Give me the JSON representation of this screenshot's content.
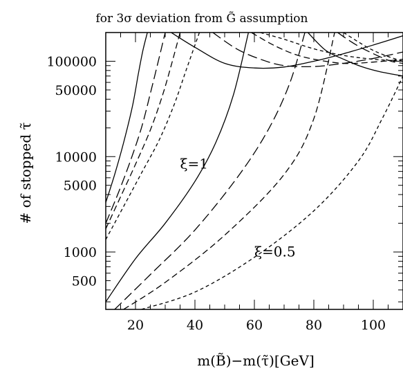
{
  "chart_data": {
    "type": "line",
    "title": "for 3σ deviation from G̃ assumption",
    "xlabel": "m(B̃)−m(τ̃)[GeV]",
    "ylabel": "# of stopped τ̃",
    "xlim": [
      10,
      110
    ],
    "ylim": [
      250,
      200000
    ],
    "yscale": "log",
    "x_ticks": [
      20,
      40,
      60,
      80,
      100
    ],
    "y_ticks": [
      500,
      1000,
      5000,
      10000,
      50000,
      100000
    ],
    "annotations": [
      {
        "text": "ξ=1",
        "x": 35,
        "y": 7500
      },
      {
        "text": "ξ=0.5",
        "x": 60,
        "y": 900
      }
    ],
    "series": [
      {
        "style": "solid",
        "group": "ξ=1",
        "x": [
          10,
          13,
          16,
          19,
          21,
          22.5,
          24
        ],
        "y": [
          3300,
          6500,
          14000,
          34000,
          75000,
          130000,
          200000
        ]
      },
      {
        "style": "long-dash",
        "group": "ξ=1",
        "x": [
          10,
          14,
          18,
          22,
          25,
          27.5,
          30
        ],
        "y": [
          2000,
          4000,
          8500,
          20000,
          46000,
          95000,
          200000
        ]
      },
      {
        "style": "medium-dash",
        "group": "ξ=1",
        "x": [
          10,
          15,
          20,
          25,
          29,
          32,
          35
        ],
        "y": [
          1750,
          3800,
          8300,
          19000,
          43000,
          90000,
          200000
        ]
      },
      {
        "style": "short-dash",
        "group": "ξ=1",
        "x": [
          10,
          16,
          22,
          28,
          33,
          37,
          41.5
        ],
        "y": [
          1350,
          3000,
          6700,
          15000,
          35000,
          80000,
          200000
        ]
      },
      {
        "style": "solid",
        "group": "ξ=0.5",
        "x": [
          10,
          20,
          30,
          40,
          47,
          53,
          58
        ],
        "y": [
          300,
          850,
          2000,
          5500,
          14000,
          45000,
          200000
        ]
      },
      {
        "style": "long-dash",
        "group": "ξ=0.5",
        "x": [
          13,
          25,
          40,
          55,
          65,
          72,
          77
        ],
        "y": [
          250,
          580,
          1700,
          6500,
          20000,
          60000,
          200000
        ]
      },
      {
        "style": "medium-dash",
        "group": "ξ=0.5",
        "x": [
          16,
          30,
          50,
          70,
          80,
          87
        ],
        "y": [
          250,
          480,
          1500,
          6500,
          25000,
          200000
        ]
      },
      {
        "style": "short-dash",
        "group": "ξ=0.5",
        "x": [
          22,
          40,
          60,
          80,
          95,
          103,
          110
        ],
        "y": [
          250,
          380,
          880,
          2700,
          9000,
          25000,
          70000
        ]
      },
      {
        "style": "solid",
        "group": "upper",
        "x": [
          32,
          40,
          50,
          60,
          70,
          80,
          90,
          100,
          110
        ],
        "y": [
          200000,
          140000,
          95000,
          85000,
          87000,
          100000,
          120000,
          148000,
          185000
        ]
      },
      {
        "style": "long-dash",
        "group": "upper",
        "x": [
          46,
          54,
          62,
          70,
          80,
          90,
          100,
          110
        ],
        "y": [
          200000,
          135000,
          105000,
          90000,
          88000,
          95000,
          107000,
          125000
        ]
      },
      {
        "style": "medium-dash",
        "group": "upper",
        "x": [
          59,
          66,
          73,
          80,
          90,
          100,
          110
        ],
        "y": [
          200000,
          150000,
          120000,
          105000,
          95000,
          98000,
          105000
        ]
      },
      {
        "style": "short-dash",
        "group": "upper",
        "x": [
          62,
          70,
          80,
          90,
          100,
          110
        ],
        "y": [
          200000,
          170000,
          135000,
          115000,
          105000,
          100000
        ]
      },
      {
        "style": "solid",
        "group": "upper",
        "x": [
          78,
          84,
          90,
          96,
          102,
          110
        ],
        "y": [
          200000,
          130000,
          105000,
          88000,
          78000,
          70000
        ]
      },
      {
        "style": "long-dash",
        "group": "upper",
        "x": [
          88,
          94,
          100,
          106,
          110
        ],
        "y": [
          200000,
          150000,
          120000,
          100000,
          95000
        ]
      },
      {
        "style": "short-dash",
        "group": "upper",
        "x": [
          90,
          98,
          104,
          110
        ],
        "y": [
          200000,
          140000,
          115000,
          100000
        ]
      }
    ]
  }
}
